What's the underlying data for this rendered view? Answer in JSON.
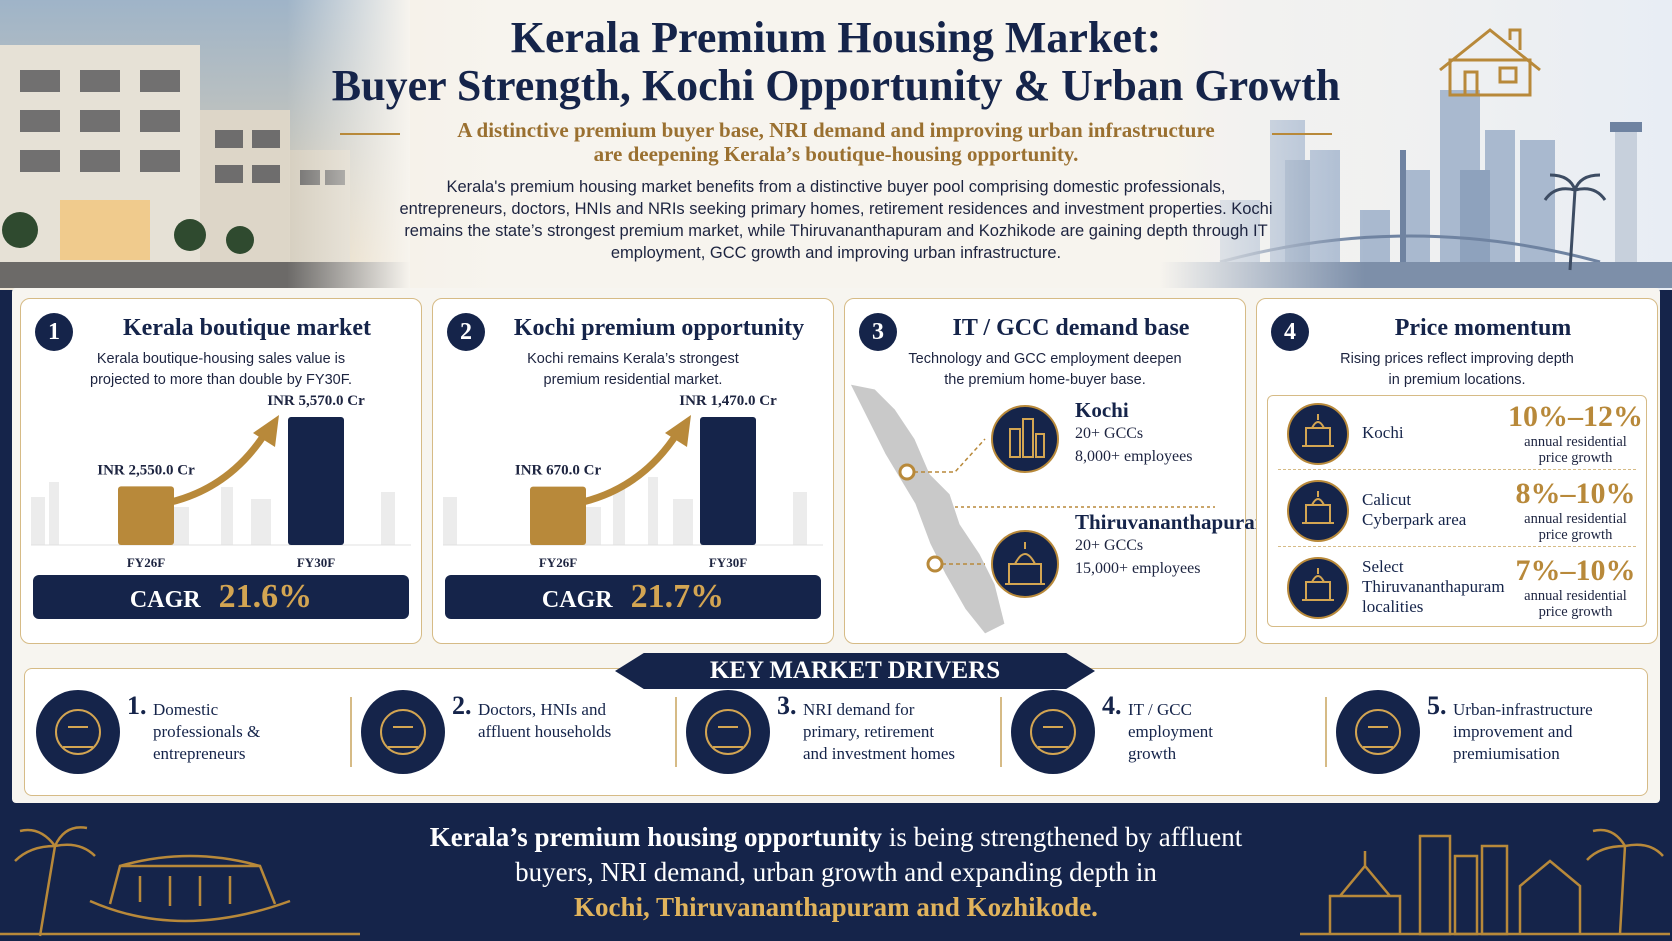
{
  "header": {
    "title": [
      "Kerala Premium Housing Market:",
      "Buyer Strength, Kochi Opportunity & Urban Growth"
    ],
    "subtitle": [
      "A distinctive premium buyer base, NRI demand and improving urban infrastructure",
      "are deepening Kerala’s boutique-housing opportunity."
    ],
    "intro": "Kerala's premium housing market benefits from a distinctive buyer pool comprising domestic professionals, entrepreneurs, doctors, HNIs and NRIs seeking primary homes, retirement residences and investment properties. Kochi remains the state’s strongest premium market, while Thiruvananthapuram and Kozhikode are gaining depth through IT employment, GCC growth and improving urban infrastructure."
  },
  "panels": [
    {
      "number": "1",
      "title": "Kerala boutique market",
      "text": [
        "Kerala boutique-housing sales value is",
        "projected to more than double by FY30F."
      ],
      "chart_data": {
        "type": "bar",
        "categories": [
          "FY26F",
          "FY30F"
        ],
        "values": [
          2550,
          5570
        ],
        "value_labels": [
          "INR 2,550.0 Cr",
          "INR 5,570.0 Cr"
        ],
        "colors": [
          "#b8893a",
          "#15244a"
        ]
      },
      "metric_label": "CAGR",
      "metric_value": "21.6%"
    },
    {
      "number": "2",
      "title": "Kochi premium opportunity",
      "text": [
        "Kochi remains Kerala’s strongest",
        "premium residential market."
      ],
      "chart_data": {
        "type": "bar",
        "categories": [
          "FY26F",
          "FY30F"
        ],
        "values": [
          670,
          1470
        ],
        "value_labels": [
          "INR 670.0 Cr",
          "INR 1,470.0 Cr"
        ],
        "colors": [
          "#b8893a",
          "#15244a"
        ]
      },
      "metric_label": "CAGR",
      "metric_value": "21.7%"
    },
    {
      "number": "3",
      "title": "IT / GCC demand base",
      "text": [
        "Technology and GCC employment deepen",
        "the premium home-buyer base."
      ],
      "cities": [
        {
          "name": "Kochi",
          "lines": [
            "20+ GCCs",
            "8,000+ employees"
          ]
        },
        {
          "name": "Thiruvananthapuram",
          "lines": [
            "20+ GCCs",
            "15,000+ employees"
          ]
        }
      ]
    },
    {
      "number": "4",
      "title": "Price momentum",
      "text": [
        "Rising prices reflect improving depth",
        "in premium locations."
      ],
      "rows": [
        {
          "name": [
            "Kochi"
          ],
          "growth": "10%–12%",
          "desc": [
            "annual residential",
            "price growth"
          ]
        },
        {
          "name": [
            "Calicut",
            "Cyberpark area"
          ],
          "growth": "8%–10%",
          "desc": [
            "annual residential",
            "price growth"
          ]
        },
        {
          "name": [
            "Select",
            "Thiruvananthapuram",
            "localities"
          ],
          "growth": "7%–10%",
          "desc": [
            "annual residential",
            "price growth"
          ]
        }
      ]
    }
  ],
  "drivers": {
    "title": "KEY MARKET DRIVERS",
    "items": [
      {
        "number": "1.",
        "lines": [
          "Domestic",
          "professionals &",
          "entrepreneurs"
        ]
      },
      {
        "number": "2.",
        "lines": [
          "Doctors, HNIs and",
          "affluent households"
        ]
      },
      {
        "number": "3.",
        "lines": [
          "NRI demand for",
          "primary, retirement",
          "and investment homes"
        ]
      },
      {
        "number": "4.",
        "lines": [
          "IT / GCC",
          "employment",
          "growth"
        ]
      },
      {
        "number": "5.",
        "lines": [
          "Urban-infrastructure",
          "improvement and",
          "premiumisation"
        ]
      }
    ]
  },
  "footer": {
    "bold": "Kerala’s premium housing opportunity",
    "text": "is being strengthened by affluent buyers, NRI demand, urban growth and expanding depth in",
    "highlight": "Kochi, Thiruvananthapuram and Kozhikode."
  }
}
